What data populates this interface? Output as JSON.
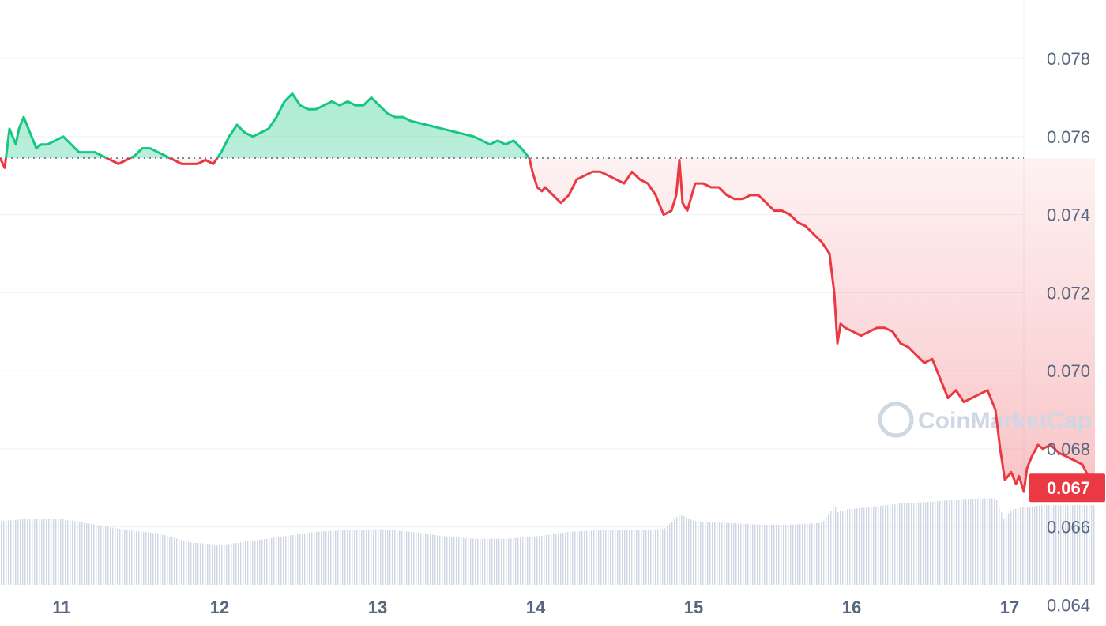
{
  "chart_data": {
    "type": "line",
    "baseline": 0.07545,
    "ylim": [
      0.0635,
      0.0795
    ],
    "xlim": [
      10.6,
      17.6
    ],
    "y_ticks": [
      {
        "value": 0.064,
        "label": "0.064"
      },
      {
        "value": 0.066,
        "label": "0.066"
      },
      {
        "value": 0.068,
        "label": "0.068"
      },
      {
        "value": 0.07,
        "label": "0.070"
      },
      {
        "value": 0.072,
        "label": "0.072"
      },
      {
        "value": 0.074,
        "label": "0.074"
      },
      {
        "value": 0.076,
        "label": "0.076"
      },
      {
        "value": 0.078,
        "label": "0.078"
      }
    ],
    "x_ticks": [
      {
        "value": 11,
        "label": "11"
      },
      {
        "value": 12,
        "label": "12"
      },
      {
        "value": 13,
        "label": "13"
      },
      {
        "value": 14,
        "label": "14"
      },
      {
        "value": 15,
        "label": "15"
      },
      {
        "value": 16,
        "label": "16"
      },
      {
        "value": 17,
        "label": "17"
      }
    ],
    "current_price": {
      "value": 0.067,
      "label": "0.067"
    },
    "grid": true,
    "colors": {
      "up": "#16c784",
      "down": "#ea3943",
      "grid": "#eff2f5",
      "volume": "#cfd6e4"
    },
    "series": [
      {
        "x": [
          10.6,
          10.63,
          10.66,
          10.7,
          10.72,
          10.75,
          10.78,
          10.8,
          10.83,
          10.86,
          10.9,
          10.95,
          11.0,
          11.05,
          11.1,
          11.15,
          11.2,
          11.25,
          11.3,
          11.35,
          11.4,
          11.45,
          11.5,
          11.55,
          11.6,
          11.65,
          11.7,
          11.75,
          11.8,
          11.85,
          11.9,
          11.95,
          12.0,
          12.05,
          12.1,
          12.15,
          12.2,
          12.25,
          12.3,
          12.35,
          12.4,
          12.45,
          12.5,
          12.55,
          12.6,
          12.65,
          12.7,
          12.75,
          12.8,
          12.85,
          12.9,
          12.95,
          13.0,
          13.05,
          13.1,
          13.15,
          13.2,
          13.3,
          13.4,
          13.5,
          13.6,
          13.7,
          13.75,
          13.8,
          13.85,
          13.9,
          13.95,
          13.97,
          14.0,
          14.03,
          14.05,
          14.1,
          14.15,
          14.2,
          14.25,
          14.3,
          14.35,
          14.4,
          14.45,
          14.5,
          14.55,
          14.6,
          14.65,
          14.7,
          14.75,
          14.8,
          14.85,
          14.88,
          14.9,
          14.92,
          14.95,
          15.0,
          15.05,
          15.1,
          15.15,
          15.2,
          15.25,
          15.3,
          15.35,
          15.4,
          15.45,
          15.5,
          15.55,
          15.6,
          15.65,
          15.7,
          15.75,
          15.8,
          15.85,
          15.88,
          15.9,
          15.92,
          15.95,
          16.0,
          16.05,
          16.1,
          16.15,
          16.2,
          16.25,
          16.3,
          16.35,
          16.4,
          16.45,
          16.5,
          16.55,
          16.6,
          16.65,
          16.7,
          16.75,
          16.8,
          16.85,
          16.9,
          16.93,
          16.96,
          17.0,
          17.03,
          17.05,
          17.08,
          17.1,
          17.13,
          17.17,
          17.2,
          17.25,
          17.3,
          17.35,
          17.4,
          17.45,
          17.5,
          17.53
        ],
        "values": [
          0.07545,
          0.0752,
          0.0762,
          0.0758,
          0.0762,
          0.0765,
          0.0762,
          0.076,
          0.0757,
          0.0758,
          0.0758,
          0.0759,
          0.076,
          0.0758,
          0.0756,
          0.0756,
          0.0756,
          0.0755,
          0.0754,
          0.0753,
          0.0754,
          0.0755,
          0.0757,
          0.0757,
          0.0756,
          0.0755,
          0.0754,
          0.0753,
          0.0753,
          0.0753,
          0.0754,
          0.0753,
          0.0756,
          0.076,
          0.0763,
          0.0761,
          0.076,
          0.0761,
          0.0762,
          0.0765,
          0.0769,
          0.0771,
          0.0768,
          0.0767,
          0.0767,
          0.0768,
          0.0769,
          0.0768,
          0.0769,
          0.0768,
          0.0768,
          0.077,
          0.0768,
          0.0766,
          0.0765,
          0.0765,
          0.0764,
          0.0763,
          0.0762,
          0.0761,
          0.076,
          0.0758,
          0.0759,
          0.0758,
          0.0759,
          0.0757,
          0.07545,
          0.0751,
          0.0747,
          0.0746,
          0.0747,
          0.0745,
          0.0743,
          0.0745,
          0.0749,
          0.075,
          0.0751,
          0.0751,
          0.075,
          0.0749,
          0.0748,
          0.0751,
          0.0749,
          0.0748,
          0.0745,
          0.074,
          0.0741,
          0.0745,
          0.0754,
          0.0743,
          0.0741,
          0.0748,
          0.0748,
          0.0747,
          0.0747,
          0.0745,
          0.0744,
          0.0744,
          0.0745,
          0.0745,
          0.0743,
          0.0741,
          0.0741,
          0.074,
          0.0738,
          0.0737,
          0.0735,
          0.0733,
          0.073,
          0.072,
          0.0707,
          0.0712,
          0.0711,
          0.071,
          0.0709,
          0.071,
          0.0711,
          0.0711,
          0.071,
          0.0707,
          0.0706,
          0.0704,
          0.0702,
          0.0703,
          0.0698,
          0.0693,
          0.0695,
          0.0692,
          0.0693,
          0.0694,
          0.0695,
          0.069,
          0.068,
          0.0672,
          0.0674,
          0.0671,
          0.0673,
          0.0669,
          0.0675,
          0.0678,
          0.0681,
          0.068,
          0.0681,
          0.0679,
          0.0678,
          0.0677,
          0.0676,
          0.0672,
          0.067
        ]
      }
    ],
    "volume": {
      "ylim": [
        0,
        1
      ],
      "x": [
        10.6,
        10.8,
        11.0,
        11.2,
        11.4,
        11.6,
        11.8,
        12.0,
        12.2,
        12.4,
        12.6,
        12.8,
        13.0,
        13.2,
        13.4,
        13.6,
        13.8,
        14.0,
        14.2,
        14.4,
        14.6,
        14.8,
        14.9,
        14.95,
        15.0,
        15.2,
        15.4,
        15.6,
        15.8,
        15.88,
        15.9,
        15.95,
        16.1,
        16.3,
        16.5,
        16.7,
        16.9,
        16.95,
        17.0,
        17.05,
        17.2,
        17.4,
        17.53
      ],
      "values": [
        0.72,
        0.75,
        0.74,
        0.68,
        0.62,
        0.58,
        0.48,
        0.45,
        0.5,
        0.55,
        0.6,
        0.62,
        0.63,
        0.6,
        0.55,
        0.52,
        0.52,
        0.55,
        0.6,
        0.62,
        0.62,
        0.63,
        0.8,
        0.75,
        0.72,
        0.7,
        0.68,
        0.68,
        0.7,
        0.9,
        0.82,
        0.85,
        0.88,
        0.92,
        0.94,
        0.97,
        0.98,
        0.75,
        0.85,
        0.87,
        0.9,
        0.9,
        0.9
      ]
    },
    "watermark": "CoinMarketCap"
  }
}
